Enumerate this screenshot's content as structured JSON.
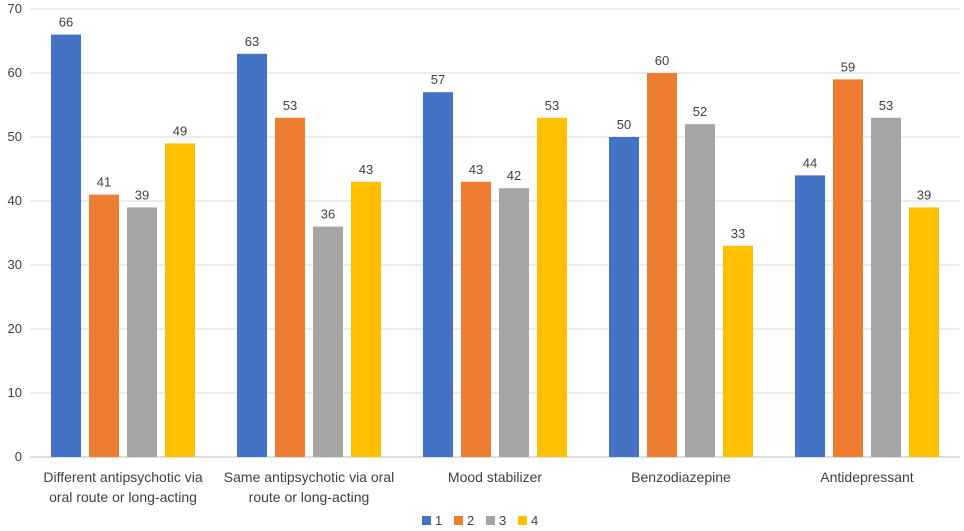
{
  "chart_data": {
    "type": "bar",
    "title": "",
    "xlabel": "",
    "ylabel": "",
    "ylim": [
      0,
      70
    ],
    "yticks": [
      0,
      10,
      20,
      30,
      40,
      50,
      60,
      70
    ],
    "grid": true,
    "legend_position": "bottom",
    "categories": [
      [
        "Different antipsychotic via",
        "oral route or long-acting"
      ],
      [
        "Same antipsychotic via oral",
        "route or long-acting"
      ],
      [
        "Mood stabilizer"
      ],
      [
        "Benzodiazepine"
      ],
      [
        "Antidepressant"
      ]
    ],
    "series": [
      {
        "name": "1",
        "color": "#4472C4",
        "values": [
          66,
          63,
          57,
          50,
          44
        ]
      },
      {
        "name": "2",
        "color": "#ED7D31",
        "values": [
          41,
          53,
          43,
          60,
          59
        ]
      },
      {
        "name": "3",
        "color": "#A5A5A5",
        "values": [
          39,
          36,
          42,
          52,
          53
        ]
      },
      {
        "name": "4",
        "color": "#FFC000",
        "values": [
          49,
          43,
          53,
          33,
          39
        ]
      }
    ]
  }
}
